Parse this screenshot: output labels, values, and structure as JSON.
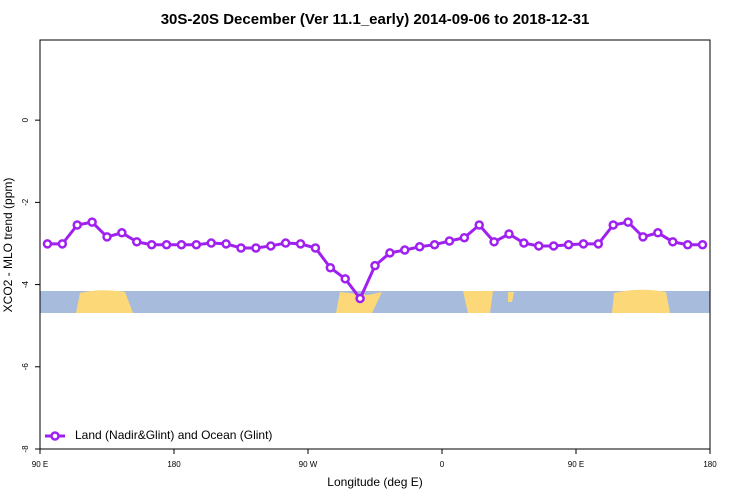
{
  "chart_data": {
    "type": "line",
    "title": "30S-20S December (Ver 11.1_early)   2014-09-06 to 2018-12-31",
    "x_label": "Longitude (deg E)",
    "y_label": "XCO2 - MLO trend (ppm)",
    "xlim": [
      90,
      540
    ],
    "xticks": [
      {
        "value": 90,
        "label": "90 E"
      },
      {
        "value": 180,
        "label": "180"
      },
      {
        "value": 270,
        "label": "90 W"
      },
      {
        "value": 360,
        "label": "0"
      },
      {
        "value": 450,
        "label": "90 E"
      },
      {
        "value": 540,
        "label": "180"
      }
    ],
    "ylim": [
      -8,
      1.95
    ],
    "yticks": [
      0,
      -2,
      -4,
      -6,
      -8
    ],
    "legend": "bottom-left",
    "x": [
      95,
      105,
      115,
      125,
      135,
      145,
      155,
      165,
      175,
      185,
      195,
      205,
      215,
      225,
      235,
      245,
      255,
      265,
      275,
      285,
      295,
      305,
      315,
      325,
      335,
      345,
      355,
      365,
      375,
      385,
      395,
      405,
      415,
      425,
      435,
      445,
      455,
      465,
      475,
      485,
      495,
      505,
      515,
      525,
      535
    ],
    "series": [
      {
        "name": "Land (Nadir&Glint) and Ocean (Glint)",
        "color": "#a020f0",
        "values": [
          -3.01,
          -3.01,
          -2.55,
          -2.48,
          -2.84,
          -2.74,
          -2.96,
          -3.03,
          -3.03,
          -3.03,
          -3.03,
          -2.99,
          -3.01,
          -3.11,
          -3.11,
          -3.06,
          -2.99,
          -3.01,
          -3.11,
          -3.59,
          -3.86,
          -4.34,
          -3.54,
          -3.23,
          -3.16,
          -3.08,
          -3.03,
          -2.94,
          -2.86,
          -2.55,
          -2.96,
          -2.77,
          -2.99,
          -3.06,
          -3.06,
          -3.03,
          -3.01,
          -3.01,
          -2.55,
          -2.48,
          -2.84,
          -2.74,
          -2.96,
          -3.03,
          -3.03
        ]
      }
    ]
  }
}
